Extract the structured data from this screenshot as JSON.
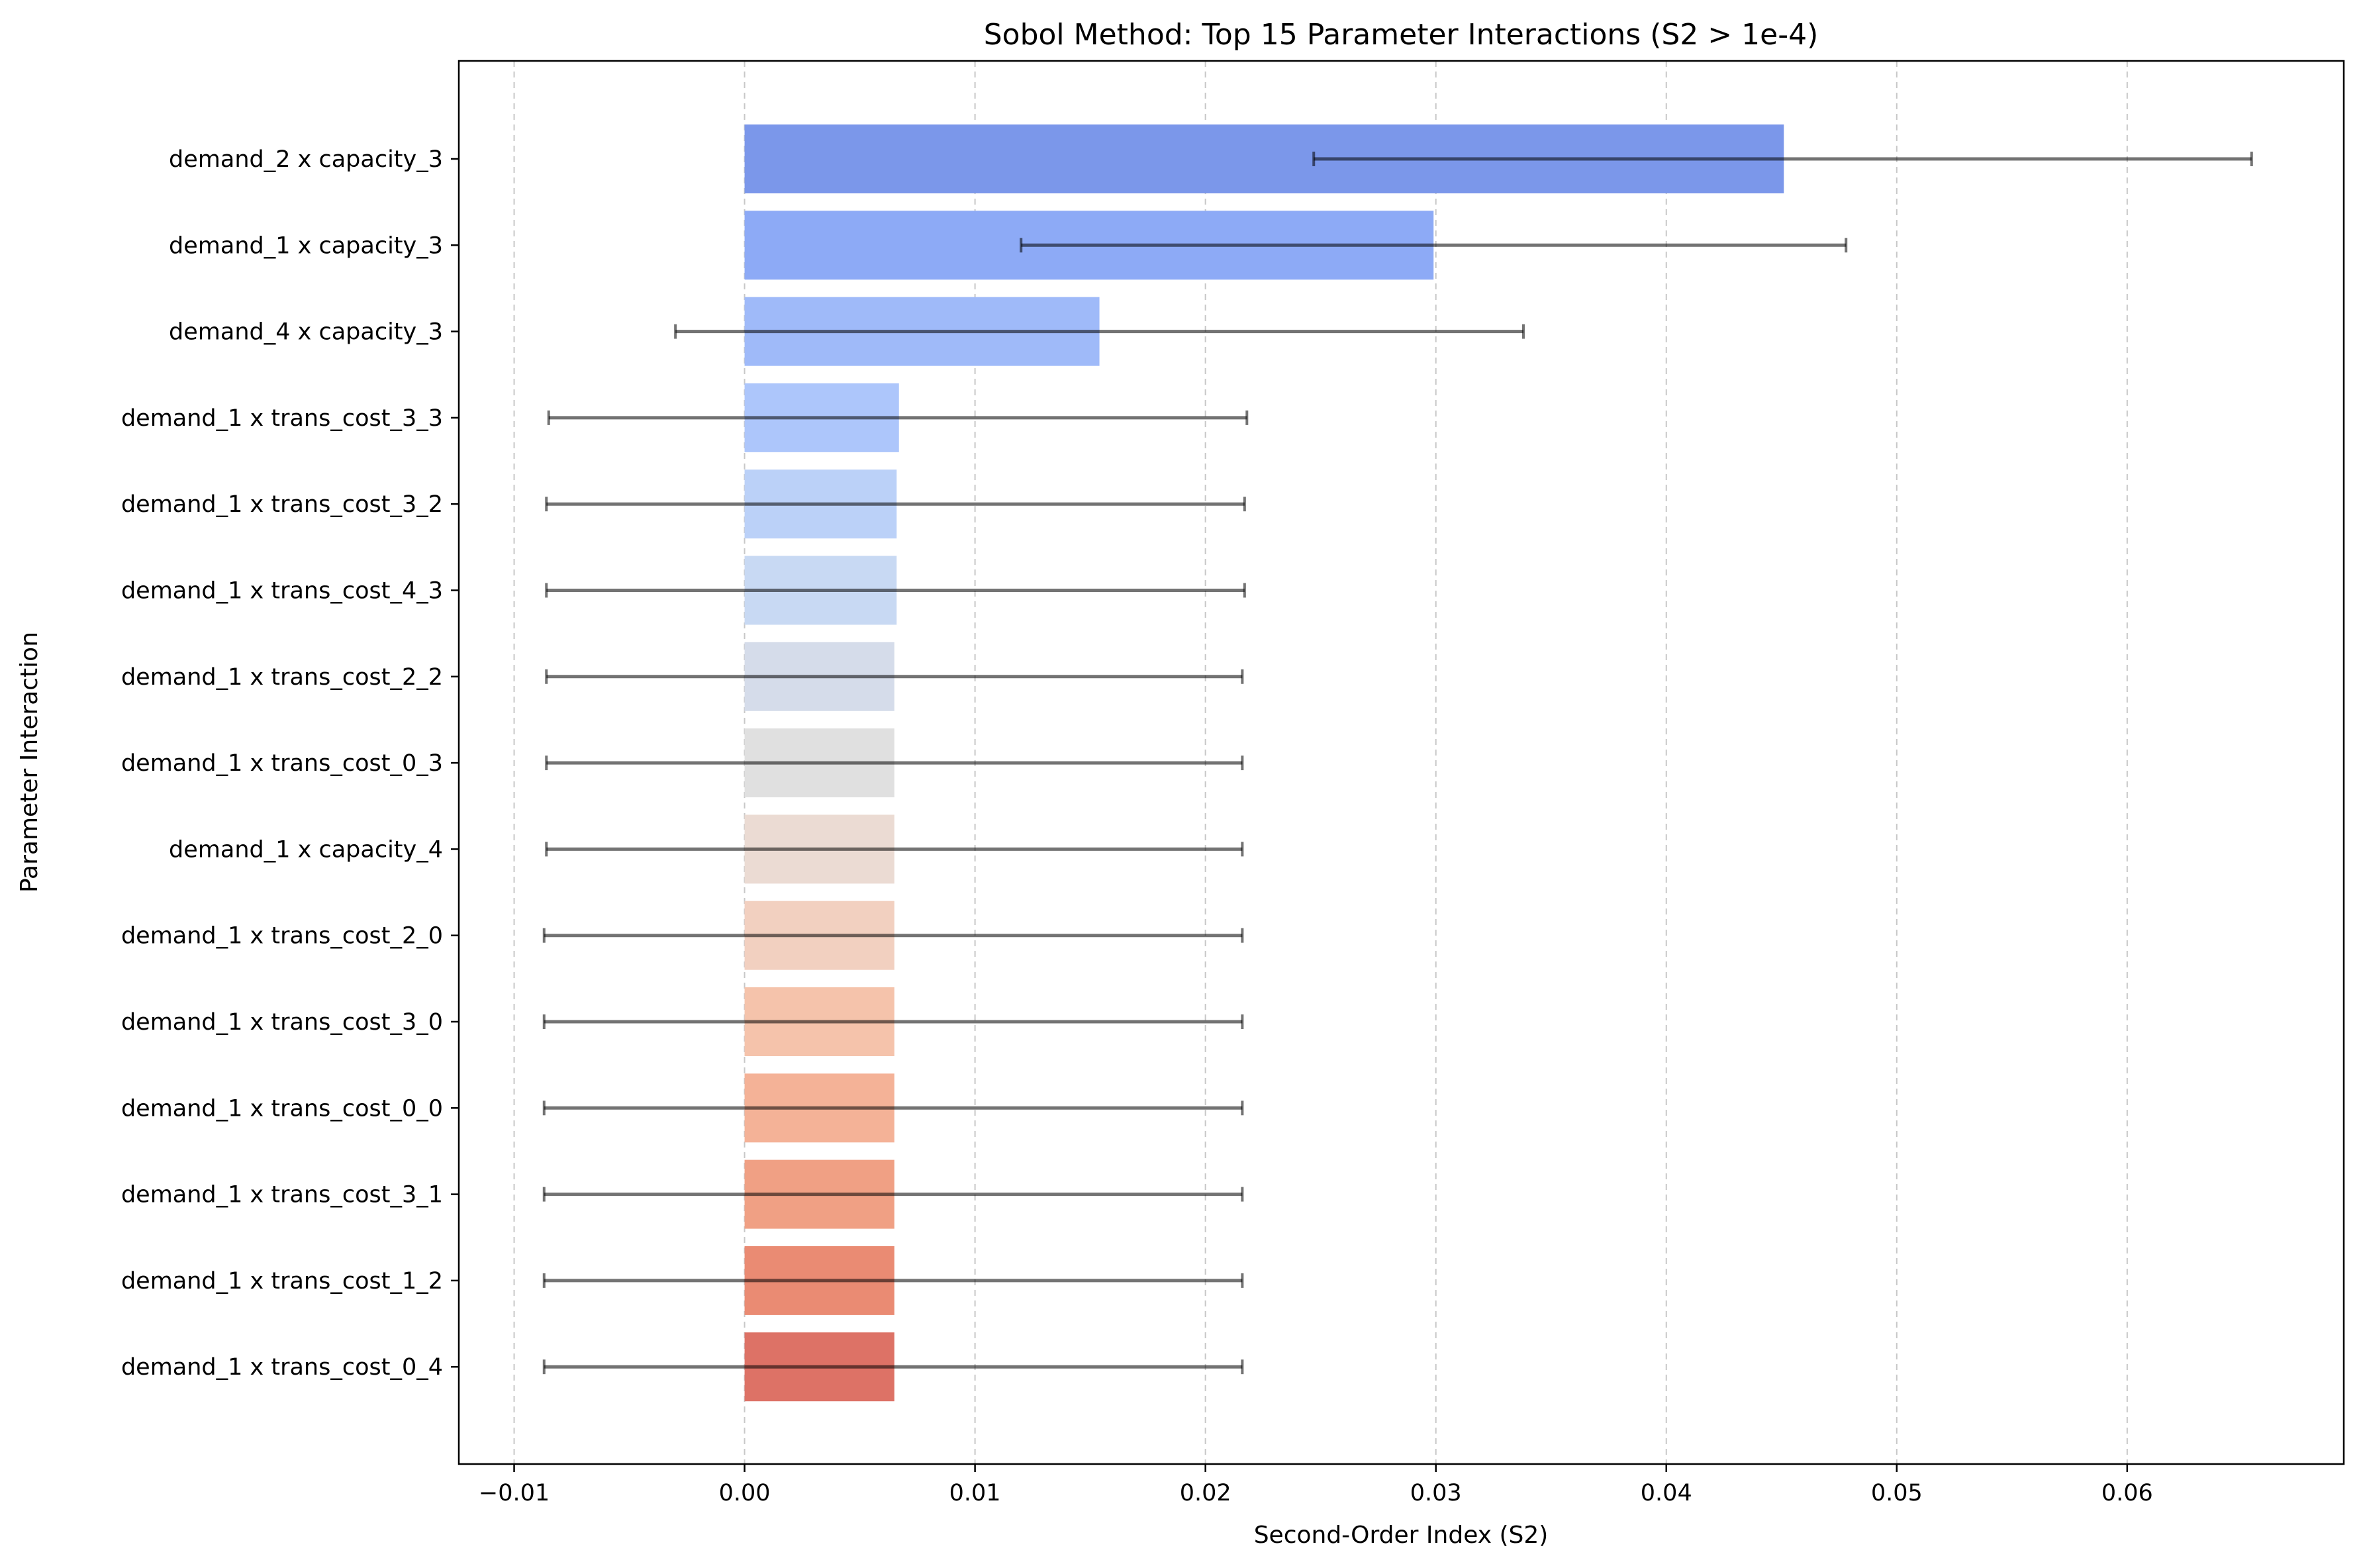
{
  "chart_data": {
    "type": "bar",
    "orientation": "horizontal",
    "title": "Sobol Method: Top 15 Parameter Interactions (S2 > 1e-4)",
    "xlabel": "Second-Order Index (S2)",
    "ylabel": "Parameter Interaction",
    "xlim": [
      -0.0124,
      0.0694
    ],
    "xticks": [
      -0.01,
      0.0,
      0.01,
      0.02,
      0.03,
      0.04,
      0.05,
      0.06
    ],
    "xtick_labels": [
      "−0.01",
      "0.00",
      "0.01",
      "0.02",
      "0.03",
      "0.04",
      "0.05",
      "0.06"
    ],
    "grid": "x-dashed",
    "categories": [
      "demand_2 x capacity_3",
      "demand_1 x capacity_3",
      "demand_4 x capacity_3",
      "demand_1 x trans_cost_3_3",
      "demand_1 x trans_cost_3_2",
      "demand_1 x trans_cost_4_3",
      "demand_1 x trans_cost_2_2",
      "demand_1 x trans_cost_0_3",
      "demand_1 x capacity_4",
      "demand_1 x trans_cost_2_0",
      "demand_1 x trans_cost_3_0",
      "demand_1 x trans_cost_0_0",
      "demand_1 x trans_cost_3_1",
      "demand_1 x trans_cost_1_2",
      "demand_1 x trans_cost_0_4"
    ],
    "values": [
      0.0451,
      0.0299,
      0.0154,
      0.0067,
      0.0066,
      0.0066,
      0.0065,
      0.0065,
      0.0065,
      0.0065,
      0.0065,
      0.0065,
      0.0065,
      0.0065,
      0.0065
    ],
    "error_low": [
      0.0247,
      0.012,
      -0.003,
      -0.0085,
      -0.0086,
      -0.0086,
      -0.0086,
      -0.0086,
      -0.0086,
      -0.0087,
      -0.0087,
      -0.0087,
      -0.0087,
      -0.0087,
      -0.0087
    ],
    "error_high": [
      0.0654,
      0.0478,
      0.0338,
      0.0218,
      0.0217,
      0.0217,
      0.0216,
      0.0216,
      0.0216,
      0.0216,
      0.0216,
      0.0216,
      0.0216,
      0.0216,
      0.0216
    ],
    "colors": [
      "#7b97ea",
      "#8daaf6",
      "#9fbaf9",
      "#adc6fb",
      "#bbd1f8",
      "#c8d9f3",
      "#d5dcea",
      "#e0e0e0",
      "#ebdbd3",
      "#f2d0c0",
      "#f5c3ab",
      "#f4b297",
      "#f0a084",
      "#ea8b73",
      "#dd7266"
    ]
  }
}
